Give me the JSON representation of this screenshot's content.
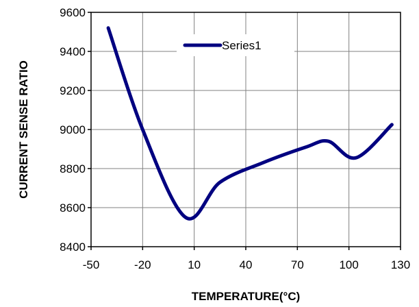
{
  "chart_data": {
    "type": "line",
    "title": "",
    "xlabel": "TEMPERATURE(°C)",
    "ylabel": "CURRENT  SENSE  RATIO",
    "xlim": [
      -50,
      130
    ],
    "ylim": [
      8400,
      9600
    ],
    "xticks": [
      -50,
      -20,
      10,
      40,
      70,
      100,
      130
    ],
    "yticks": [
      8400,
      8600,
      8800,
      9000,
      9200,
      9400,
      9600
    ],
    "grid": true,
    "legend_position": "top-center",
    "series": [
      {
        "name": "Series1",
        "color": "#000080",
        "x": [
          -40,
          -20,
          5,
          25,
          50,
          75,
          88,
          104,
          125
        ],
        "y": [
          9520,
          9000,
          8550,
          8730,
          8830,
          8910,
          8940,
          8855,
          9025
        ]
      }
    ]
  }
}
